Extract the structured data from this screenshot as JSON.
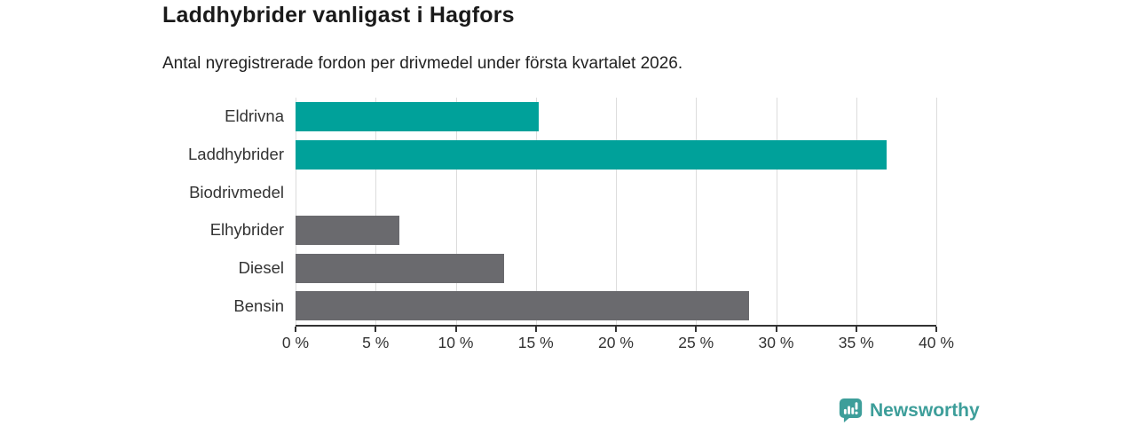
{
  "header": {
    "title": "Laddhybrider vanligast i Hagfors",
    "subtitle": "Antal nyregistrerade fordon per drivmedel under första kvartalet 2026."
  },
  "chart_data": {
    "type": "bar",
    "orientation": "horizontal",
    "title": "Laddhybrider vanligast i Hagfors",
    "subtitle": "Antal nyregistrerade fordon per drivmedel under första kvartalet 2026.",
    "categories": [
      "Eldrivna",
      "Laddhybrider",
      "Biodrivmedel",
      "Elhybrider",
      "Diesel",
      "Bensin"
    ],
    "values": [
      15.2,
      36.9,
      0,
      6.5,
      13.0,
      28.3
    ],
    "unit": "%",
    "bar_colors": [
      "#00A19A",
      "#00A19A",
      "#6A6A6E",
      "#6A6A6E",
      "#6A6A6E",
      "#6A6A6E"
    ],
    "x_ticks": [
      0,
      5,
      10,
      15,
      20,
      25,
      30,
      35,
      40
    ],
    "x_tick_labels": [
      "0 %",
      "5 %",
      "10 %",
      "15 %",
      "20 %",
      "25 %",
      "30 %",
      "35 %",
      "40 %"
    ],
    "xlim": [
      0,
      40
    ],
    "grid": true,
    "legend": "none"
  },
  "footer": {
    "brand": "Newsworthy",
    "logo_icon": "speech-bubble-bar-chart-icon"
  },
  "colors": {
    "accent_teal": "#00A19A",
    "bar_gray": "#6A6A6E",
    "brand_teal": "#3D9E9A",
    "gridline": "#DCDCDC",
    "axis": "#333333",
    "title_text": "#1A1A1A",
    "body_text": "#333333"
  }
}
